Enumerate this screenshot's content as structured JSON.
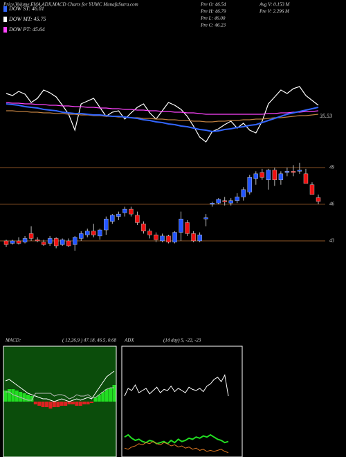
{
  "header": {
    "title": "Price,Volume,EMA,ADX,MACD Charts for YUMC MunafaSutra.com",
    "legend": [
      {
        "label": "DOW ST: 46.81",
        "color": "#3366ff"
      },
      {
        "label": "DOW MT: 45.75",
        "color": "#ffffff"
      },
      {
        "label": "DOW PT: 45.64",
        "color": "#ff44ff"
      }
    ],
    "stats_left": [
      "Pre  O: 46.54",
      "Pre  H: 46.79",
      "Pre  L: 46.00",
      "Pre  C: 46.23"
    ],
    "stats_right": [
      "Avg V: 0.153 M",
      "Pre  V: 2.296  M"
    ]
  },
  "chart_data": [
    {
      "type": "line",
      "annotation": "35.53",
      "ylim": [
        0,
        160
      ],
      "series": [
        {
          "color": "#ffffff",
          "values": [
            90,
            87,
            93,
            89,
            77,
            83,
            95,
            91,
            85,
            73,
            60,
            37,
            75,
            79,
            83,
            70,
            57,
            63,
            65,
            53,
            62,
            70,
            75,
            62,
            53,
            65,
            77,
            73,
            67,
            57,
            43,
            27,
            20,
            35,
            39,
            45,
            50,
            40,
            47,
            37,
            33,
            50,
            75,
            85,
            95,
            90,
            97,
            100,
            87,
            80,
            73
          ]
        },
        {
          "color": "#c08040",
          "values": [
            65,
            65,
            64,
            64,
            63,
            63,
            62,
            62,
            61,
            61,
            60,
            60,
            59,
            59,
            58,
            58,
            57,
            57,
            56,
            56,
            55,
            55,
            54,
            54,
            53,
            53,
            52,
            52,
            51,
            51,
            50,
            50,
            49,
            49,
            50,
            50,
            51,
            51,
            52,
            52,
            53,
            53,
            54,
            55,
            55,
            56,
            57,
            58,
            58,
            59,
            60
          ]
        },
        {
          "color": "#ff44ff",
          "values": [
            77,
            76,
            76,
            75,
            75,
            74,
            74,
            73,
            73,
            72,
            72,
            71,
            71,
            70,
            70,
            69,
            69,
            68,
            68,
            67,
            67,
            66,
            66,
            65,
            65,
            64,
            64,
            63,
            63,
            62,
            62,
            61,
            60,
            60,
            60,
            60,
            60,
            60,
            60,
            60,
            60,
            60,
            61,
            61,
            62,
            62,
            63,
            63,
            64,
            64,
            65
          ]
        },
        {
          "color": "#3366ff",
          "values": [
            75,
            74,
            73,
            71,
            70,
            69,
            67,
            66,
            65,
            63,
            62,
            61,
            61,
            60,
            59,
            59,
            58,
            57,
            57,
            56,
            55,
            54,
            52,
            51,
            49,
            48,
            46,
            45,
            43,
            42,
            40,
            38,
            37,
            35,
            36,
            38,
            39,
            41,
            42,
            44,
            45,
            48,
            51,
            54,
            57,
            60,
            62,
            64,
            66,
            68,
            70
          ]
        }
      ]
    },
    {
      "type": "candlestick",
      "ylim": [
        41.75,
        49.4
      ],
      "yticks": [
        43,
        46,
        49
      ],
      "up_color": "#2255ff",
      "down_color": "#ee1111",
      "open": [
        43.0,
        42.8,
        43.0,
        42.9,
        43.6,
        43.1,
        42.9,
        42.8,
        43.2,
        42.7,
        43.0,
        42.7,
        43.2,
        43.5,
        43.8,
        43.4,
        43.9,
        44.6,
        45.0,
        45.3,
        45.6,
        45.1,
        44.4,
        43.8,
        43.5,
        43.0,
        43.4,
        42.9,
        43.7,
        44.5,
        43.6,
        43.0,
        44.8,
        46.0,
        46.1,
        46.3,
        46.1,
        46.3,
        46.6,
        47.0,
        48.1,
        48.6,
        48.0,
        48.8,
        48.0,
        48.6,
        48.7,
        48.7,
        48.5,
        47.6,
        46.54
      ],
      "high": [
        43.1,
        43.1,
        43.3,
        43.4,
        44.2,
        43.3,
        43.1,
        43.4,
        43.3,
        43.2,
        43.2,
        43.4,
        43.8,
        44.0,
        44.4,
        44.0,
        45.0,
        45.2,
        45.4,
        45.8,
        45.8,
        45.4,
        44.6,
        44.0,
        43.7,
        43.6,
        43.5,
        43.8,
        45.4,
        44.7,
        43.8,
        43.7,
        45.2,
        46.2,
        46.5,
        46.6,
        46.5,
        46.9,
        47.4,
        48.4,
        48.7,
        48.9,
        48.9,
        49.0,
        48.7,
        49.0,
        49.2,
        49.4,
        48.9,
        47.8,
        46.79
      ],
      "low": [
        42.5,
        42.7,
        42.7,
        42.8,
        43.0,
        42.9,
        42.6,
        42.6,
        42.4,
        42.6,
        42.5,
        42.2,
        43.0,
        43.3,
        43.3,
        43.1,
        43.5,
        44.4,
        44.7,
        45.0,
        45.0,
        44.3,
        43.6,
        43.2,
        42.9,
        42.9,
        42.8,
        42.8,
        43.0,
        43.4,
        42.9,
        42.9,
        44.2,
        45.8,
        46.0,
        45.9,
        45.9,
        46.1,
        46.3,
        46.8,
        47.6,
        48.0,
        47.2,
        47.5,
        47.6,
        48.3,
        48.3,
        48.5,
        47.7,
        46.8,
        46.0
      ],
      "close": [
        42.7,
        43.0,
        42.8,
        43.2,
        43.2,
        43.0,
        42.7,
        43.2,
        42.6,
        43.1,
        42.6,
        43.3,
        43.6,
        43.8,
        43.5,
        43.9,
        44.8,
        45.1,
        45.2,
        45.6,
        45.2,
        44.5,
        43.8,
        43.5,
        43.1,
        43.4,
        42.9,
        43.7,
        44.8,
        43.6,
        43.0,
        43.5,
        44.9,
        46.1,
        46.4,
        46.2,
        46.3,
        46.6,
        47.2,
        48.2,
        48.5,
        48.2,
        48.8,
        48.0,
        48.5,
        48.7,
        48.6,
        48.8,
        47.7,
        46.8,
        46.23
      ]
    },
    {
      "type": "macd",
      "title": "MACD:",
      "subtitle": "( 12,26,9 ) 47.18, 46.5, 0.68",
      "ylim": [
        -4,
        4
      ],
      "up_color": "#22dd22",
      "down_color": "#dd2222",
      "histogram": [
        0.8,
        0.9,
        0.9,
        0.8,
        0.7,
        0.6,
        0.5,
        0.4,
        -0.2,
        -0.3,
        -0.4,
        -0.4,
        -0.5,
        -0.4,
        -0.4,
        -0.3,
        -0.3,
        -0.2,
        -0.2,
        -0.3,
        -0.3,
        -0.2,
        -0.2,
        -0.1,
        0.3,
        0.5,
        0.7,
        0.9,
        1.0,
        1.2
      ],
      "series": [
        {
          "color": "#ffffff",
          "values": [
            1.5,
            1.6,
            1.4,
            1.2,
            1.0,
            0.8,
            0.6,
            0.5,
            0.4,
            0.3,
            0.2,
            0.2,
            0.1,
            0.0,
            0.1,
            0.2,
            0.1,
            0.0,
            0.1,
            0.2,
            0.1,
            0.2,
            0.3,
            0.2,
            0.6,
            1.0,
            1.4,
            1.8,
            2.0,
            2.2
          ]
        },
        {
          "color": "#bbbbbb",
          "values": [
            0.7,
            0.7,
            0.5,
            0.4,
            0.3,
            0.2,
            0.1,
            0.1,
            0.6,
            0.6,
            0.6,
            0.6,
            0.6,
            0.4,
            0.5,
            0.5,
            0.4,
            0.2,
            0.3,
            0.5,
            0.4,
            0.4,
            0.5,
            0.3,
            0.3,
            0.5,
            0.7,
            0.9,
            1.0,
            1.0
          ]
        }
      ]
    },
    {
      "type": "adx",
      "title": "ADX",
      "subtitle": "(14  day) 5, -22, -23",
      "ylim": [
        0,
        100
      ],
      "series": [
        {
          "color": "#ffffff",
          "values": [
            55,
            62,
            60,
            65,
            58,
            60,
            62,
            57,
            60,
            63,
            58,
            61,
            60,
            64,
            59,
            62,
            60,
            58,
            63,
            61,
            60,
            62,
            59,
            64,
            66,
            70,
            72,
            68,
            74,
            55
          ]
        },
        {
          "color": "#22dd22",
          "values": [
            18,
            20,
            17,
            15,
            16,
            14,
            13,
            15,
            14,
            12,
            13,
            14,
            12,
            15,
            13,
            16,
            14,
            15,
            17,
            16,
            18,
            17,
            19,
            18,
            20,
            18,
            16,
            15,
            13,
            14
          ]
        },
        {
          "color": "#dd7722",
          "values": [
            8,
            7,
            9,
            10,
            12,
            11,
            13,
            12,
            14,
            12,
            11,
            13,
            12,
            10,
            11,
            9,
            10,
            8,
            9,
            7,
            8,
            6,
            7,
            5,
            6,
            5,
            6,
            7,
            5,
            4
          ]
        }
      ]
    }
  ]
}
